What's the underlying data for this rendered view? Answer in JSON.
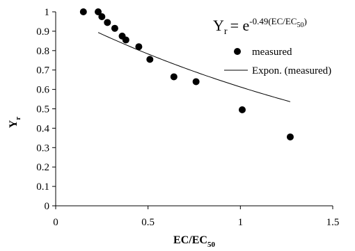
{
  "chart_data": {
    "type": "scatter",
    "xlabel": "EC/EC",
    "xlabel_sub": "50",
    "ylabel": "Y",
    "ylabel_sub": "r",
    "xlim": [
      0,
      1.5
    ],
    "ylim": [
      0,
      1
    ],
    "x_ticks": [
      0,
      0.5,
      1,
      1.5
    ],
    "x_tick_labels": [
      "0",
      "0.5",
      "1",
      "1.5"
    ],
    "y_ticks": [
      0,
      0.1,
      0.2,
      0.3,
      0.4,
      0.5,
      0.6,
      0.7,
      0.8,
      0.9,
      1
    ],
    "y_tick_labels": [
      "0",
      "0.1",
      "0.2",
      "0.3",
      "0.4",
      "0.5",
      "0.6",
      "0.7",
      "0.8",
      "0.9",
      "1"
    ],
    "grid": false,
    "legend_position": "right",
    "series": [
      {
        "name": "measured",
        "type": "scatter",
        "x": [
          0.15,
          0.23,
          0.25,
          0.28,
          0.32,
          0.36,
          0.38,
          0.45,
          0.51,
          0.64,
          0.76,
          1.01,
          1.27
        ],
        "y": [
          1.0,
          1.0,
          0.975,
          0.945,
          0.915,
          0.875,
          0.855,
          0.82,
          0.755,
          0.665,
          0.64,
          0.495,
          0.355
        ],
        "color": "#000000"
      },
      {
        "name": "Expon. (measured)",
        "type": "line",
        "equation_coefficient": -0.49,
        "x_range": [
          0.23,
          1.27
        ],
        "color": "#000000"
      }
    ],
    "equation": {
      "lhs": "Y",
      "lhs_sub": "r",
      "equals": "= e",
      "exponent": "-0.49(EC/EC",
      "exponent_sub": "50",
      "exponent_close": ")"
    }
  }
}
